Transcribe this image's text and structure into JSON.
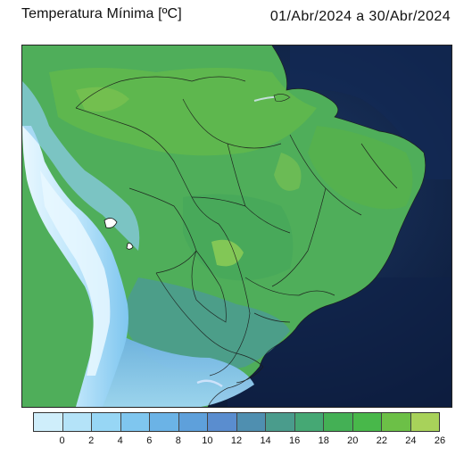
{
  "header": {
    "title": "Temperatura Mínima [ºC]",
    "period": "01/Abr/2024 a 30/Abr/2024"
  },
  "colorbar": {
    "colors": [
      "#cfeefb",
      "#b4e3f8",
      "#97d6f5",
      "#7fc6ef",
      "#6bb3e6",
      "#5ea0db",
      "#5a8dcf",
      "#4f8fb0",
      "#4a9c8c",
      "#45a874",
      "#44b055",
      "#48b84a",
      "#6cc047",
      "#a8d25a"
    ],
    "ticks": [
      "0",
      "2",
      "4",
      "6",
      "8",
      "10",
      "12",
      "14",
      "16",
      "18",
      "20",
      "22",
      "24",
      "26"
    ]
  },
  "map": {
    "ocean_color": "#0c1b3a",
    "border_color": "#1a1a1a"
  }
}
